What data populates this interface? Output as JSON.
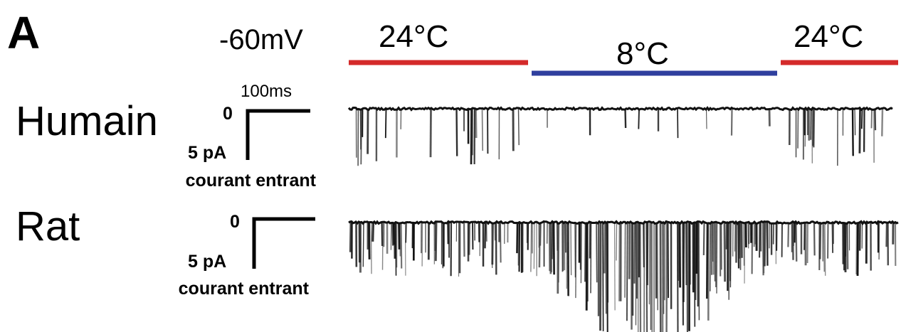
{
  "panel_label": "A",
  "voltage": "-60mV",
  "conditions": [
    {
      "label": "24°C",
      "color": "#d42a2a"
    },
    {
      "label": "8°C",
      "color": "#2f3f9e"
    },
    {
      "label": "24°C",
      "color": "#d42a2a"
    }
  ],
  "scale_bar": {
    "time": "100ms",
    "current": "5 pA",
    "zero": "0",
    "direction": "courant entrant"
  },
  "traces": [
    {
      "species": "Humain"
    },
    {
      "species": "Rat"
    }
  ],
  "trace_color": "#111111"
}
